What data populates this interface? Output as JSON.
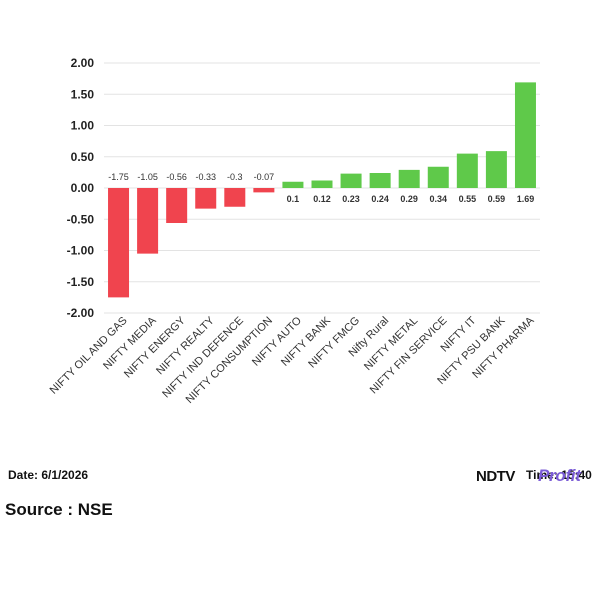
{
  "chart_data": {
    "type": "bar",
    "categories": [
      "NIFTY OIL AND GAS",
      "NIFTY MEDIA",
      "NIFTY ENERGY",
      "NIFTY REALTY",
      "NIFTY IND DEFENCE",
      "NIFTY CONSUMPTION",
      "NIFTY AUTO",
      "NIFTY BANK",
      "NIFTY FMCG",
      "Nifty Rural",
      "NIFTY METAL",
      "NIFTY FIN SERVICE",
      "NIFTY IT",
      "NIFTY PSU BANK",
      "NIFTY PHARMA"
    ],
    "values": [
      -1.75,
      -1.05,
      -0.56,
      -0.33,
      -0.3,
      -0.07,
      0.1,
      0.12,
      0.23,
      0.24,
      0.29,
      0.34,
      0.55,
      0.59,
      1.69
    ],
    "data_labels": [
      "-1.75",
      "-1.05",
      "-0.56",
      "-0.33",
      "-0.3",
      "-0.07",
      "0.1",
      "0.12",
      "0.23",
      "0.24",
      "0.29",
      "0.34",
      "0.55",
      "0.59",
      "1.69"
    ],
    "yticks": [
      "2.00",
      "1.50",
      "1.00",
      "0.50",
      "0.00",
      "-0.50",
      "-1.00",
      "-1.50",
      "-2.00"
    ],
    "ylim": [
      -2,
      2
    ],
    "grid": true,
    "colors": {
      "positive": "#5fc94a",
      "negative": "#f0444e"
    }
  },
  "footer": {
    "date": "Date: 6/1/2026",
    "source": "Source : NSE",
    "brand_ndtv": "NDTV",
    "brand_profit": "Profit",
    "time": "Time: 15:40"
  }
}
